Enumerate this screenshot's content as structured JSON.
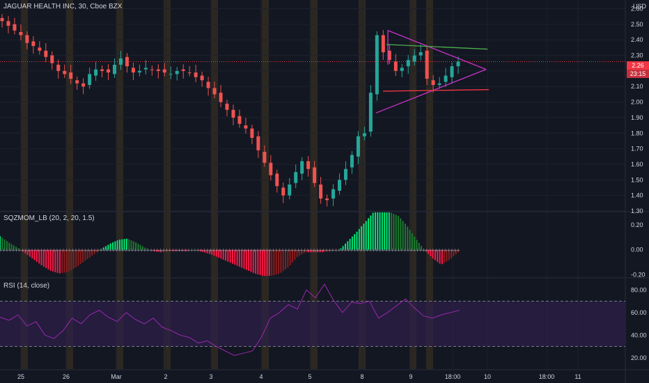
{
  "title": "JAGUAR HEALTH INC, 30, Cboe BZX",
  "currency": "USD",
  "last_price": "2.26",
  "countdown": "23:15",
  "colors": {
    "background": "#131722",
    "up": "#26a69a",
    "down": "#ef5350",
    "session_band": "#8a6a1e",
    "triangle": "#cc33cc",
    "green_line": "#4caf50",
    "red_line": "#f23645",
    "rsi_line": "#9c27b0",
    "rsi_band": "#2e1f4a"
  },
  "chart_data": [
    {
      "type": "candlestick",
      "title": "JAGUAR HEALTH INC, 30, Cboe BZX",
      "ylim": [
        1.3,
        2.62
      ],
      "yticks": [
        2.6,
        2.5,
        2.4,
        2.3,
        2.2,
        2.1,
        2.0,
        1.9,
        1.8,
        1.7,
        1.6,
        1.5,
        1.4,
        1.3
      ],
      "x_tick_labels": [
        "25",
        "26",
        "Mar",
        "2",
        "3",
        "4",
        "5",
        "8",
        "9",
        "18:00",
        "10",
        "18:00",
        "11"
      ],
      "close_path": [
        2.52,
        2.49,
        2.46,
        2.43,
        2.38,
        2.36,
        2.33,
        2.29,
        2.25,
        2.2,
        2.18,
        2.15,
        2.12,
        2.1,
        2.18,
        2.21,
        2.2,
        2.19,
        2.24,
        2.28,
        2.23,
        2.19,
        2.2,
        2.22,
        2.21,
        2.2,
        2.19,
        2.18,
        2.2,
        2.2,
        2.19,
        2.16,
        2.14,
        2.09,
        2.05,
        2.0,
        1.95,
        1.9,
        1.86,
        1.83,
        1.77,
        1.69,
        1.61,
        1.53,
        1.46,
        1.4,
        1.47,
        1.55,
        1.62,
        1.57,
        1.48,
        1.38,
        1.37,
        1.44,
        1.5,
        1.57,
        1.66,
        1.78,
        1.8,
        2.06,
        2.43,
        2.32,
        2.27,
        2.2,
        2.22,
        2.27,
        2.3,
        2.32,
        2.15,
        2.11,
        2.12,
        2.17,
        2.23,
        2.26
      ],
      "pattern": {
        "triangle_upper": [
          [
            2.46,
            2.21
          ]
        ],
        "triangle_lower": [
          [
            1.93,
            2.21
          ]
        ],
        "resistance": [
          2.37,
          2.34
        ],
        "support": [
          2.07,
          2.08
        ]
      }
    },
    {
      "type": "bar",
      "title": "SQZMOM_LB (20, 2, 20, 1.5)",
      "ylim": [
        -0.22,
        0.3
      ],
      "yticks": [
        0.2,
        0.0,
        -0.2
      ],
      "values": [
        0.11,
        0.06,
        0.02,
        -0.03,
        -0.08,
        -0.13,
        -0.17,
        -0.19,
        -0.18,
        -0.14,
        -0.09,
        -0.04,
        0.01,
        0.05,
        0.08,
        0.09,
        0.06,
        0.02,
        -0.01,
        -0.02,
        -0.01,
        -0.01,
        -0.01,
        0.0,
        -0.02,
        -0.04,
        -0.07,
        -0.1,
        -0.13,
        -0.16,
        -0.19,
        -0.21,
        -0.21,
        -0.19,
        -0.14,
        -0.06,
        -0.02,
        -0.02,
        -0.02,
        -0.01,
        0.0,
        0.07,
        0.14,
        0.22,
        0.3,
        0.3,
        0.3,
        0.27,
        0.19,
        0.09,
        0.0,
        -0.07,
        -0.12,
        -0.08,
        -0.02
      ]
    },
    {
      "type": "line",
      "title": "RSI (14, close)",
      "ylim": [
        10,
        90
      ],
      "yticks": [
        80,
        60,
        40,
        20
      ],
      "band": [
        30,
        70
      ],
      "values": [
        56,
        53,
        58,
        48,
        52,
        40,
        37,
        44,
        55,
        50,
        58,
        62,
        56,
        52,
        60,
        54,
        50,
        55,
        47,
        44,
        40,
        38,
        33,
        35,
        30,
        26,
        22,
        24,
        26,
        38,
        55,
        60,
        67,
        63,
        80,
        73,
        85,
        71,
        60,
        69,
        68,
        70,
        55,
        60,
        66,
        72,
        64,
        57,
        55,
        58,
        60,
        62
      ]
    }
  ]
}
